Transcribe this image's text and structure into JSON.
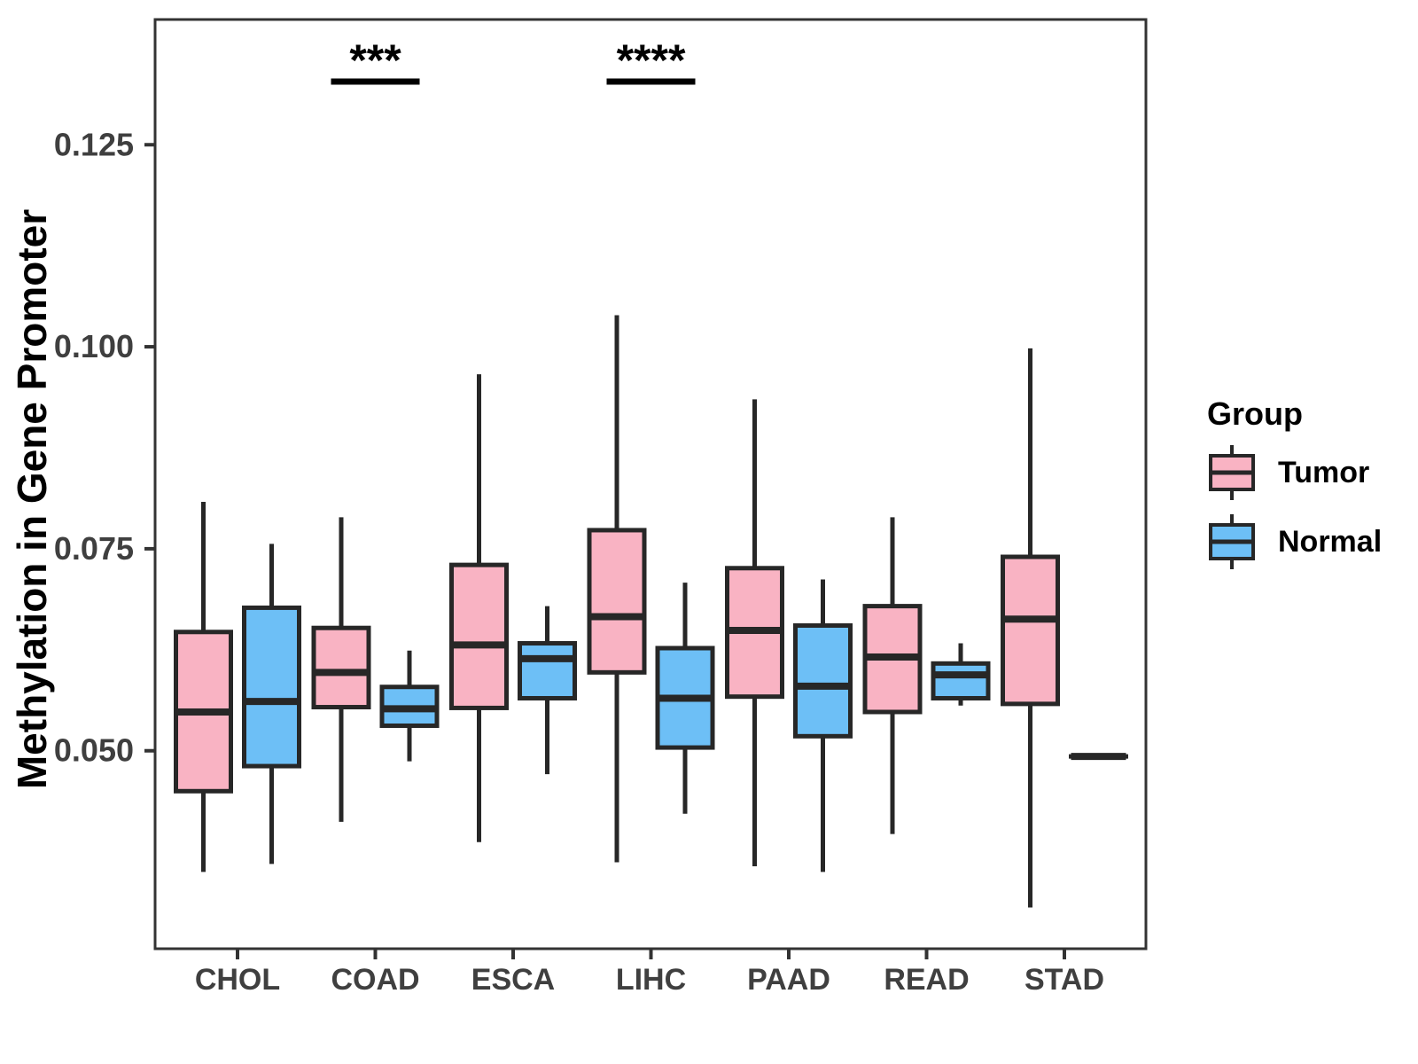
{
  "chart_data": {
    "type": "boxplot",
    "title": "",
    "xlabel": "",
    "ylabel": "Methylation in Gene Promoter",
    "legend_title": "Group",
    "legend_position": "right",
    "grid": false,
    "categories": [
      "CHOL",
      "COAD",
      "ESCA",
      "LIHC",
      "PAAD",
      "READ",
      "STAD"
    ],
    "y_ticks": [
      0.05,
      0.075,
      0.1,
      0.125
    ],
    "y_tick_labels": [
      "0.050",
      "0.075",
      "0.100",
      "0.125"
    ],
    "ylim": [
      0.0255,
      0.1405
    ],
    "series": [
      {
        "name": "Tumor",
        "color": "#F9B3C3",
        "boxes": [
          {
            "category": "CHOL",
            "whisker_low": 0.035,
            "q1": 0.045,
            "median": 0.0548,
            "q3": 0.0647,
            "whisker_high": 0.0808
          },
          {
            "category": "COAD",
            "whisker_low": 0.0412,
            "q1": 0.0554,
            "median": 0.0597,
            "q3": 0.0652,
            "whisker_high": 0.0789
          },
          {
            "category": "ESCA",
            "whisker_low": 0.0387,
            "q1": 0.0553,
            "median": 0.0631,
            "q3": 0.073,
            "whisker_high": 0.0966
          },
          {
            "category": "LIHC",
            "whisker_low": 0.0362,
            "q1": 0.0597,
            "median": 0.0666,
            "q3": 0.0773,
            "whisker_high": 0.1039
          },
          {
            "category": "PAAD",
            "whisker_low": 0.0357,
            "q1": 0.0567,
            "median": 0.0649,
            "q3": 0.0726,
            "whisker_high": 0.0935
          },
          {
            "category": "READ",
            "whisker_low": 0.0397,
            "q1": 0.0548,
            "median": 0.0616,
            "q3": 0.0679,
            "whisker_high": 0.0789
          },
          {
            "category": "STAD",
            "whisker_low": 0.0306,
            "q1": 0.0558,
            "median": 0.0663,
            "q3": 0.074,
            "whisker_high": 0.0998
          }
        ]
      },
      {
        "name": "Normal",
        "color": "#6DBFF6",
        "boxes": [
          {
            "category": "CHOL",
            "whisker_low": 0.036,
            "q1": 0.0481,
            "median": 0.0561,
            "q3": 0.0677,
            "whisker_high": 0.0756
          },
          {
            "category": "COAD",
            "whisker_low": 0.0487,
            "q1": 0.0531,
            "median": 0.0552,
            "q3": 0.0579,
            "whisker_high": 0.0624
          },
          {
            "category": "ESCA",
            "whisker_low": 0.0471,
            "q1": 0.0565,
            "median": 0.0614,
            "q3": 0.0633,
            "whisker_high": 0.0679
          },
          {
            "category": "LIHC",
            "whisker_low": 0.0422,
            "q1": 0.0504,
            "median": 0.0565,
            "q3": 0.0627,
            "whisker_high": 0.0708
          },
          {
            "category": "PAAD",
            "whisker_low": 0.035,
            "q1": 0.0518,
            "median": 0.058,
            "q3": 0.0655,
            "whisker_high": 0.0712
          },
          {
            "category": "READ",
            "whisker_low": 0.0556,
            "q1": 0.0565,
            "median": 0.0594,
            "q3": 0.0608,
            "whisker_high": 0.0633
          },
          {
            "category": "STAD",
            "whisker_low": 0.0493,
            "q1": 0.0493,
            "median": 0.0493,
            "q3": 0.0493,
            "whisker_high": 0.0493
          }
        ]
      }
    ],
    "annotations": [
      {
        "category": "COAD",
        "label": "***"
      },
      {
        "category": "LIHC",
        "label": "****"
      }
    ],
    "style": {
      "box_border_color": "#272727",
      "whisker_color": "#272727",
      "axis_text_color": "#3F3F3F",
      "axis_title_color": "#000000",
      "panel_border_color": "#333333",
      "annotation_color": "#000000",
      "background_color": "#FFFFFF"
    }
  }
}
